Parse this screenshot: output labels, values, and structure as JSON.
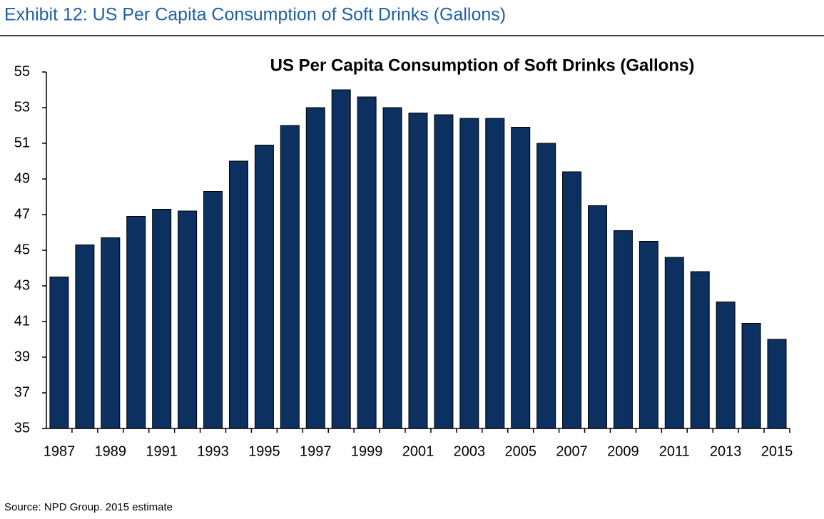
{
  "header": {
    "title": "Exhibit 12: US Per Capita Consumption of Soft Drinks (Gallons)"
  },
  "chart_data": {
    "type": "bar",
    "title": "US Per Capita Consumption of Soft Drinks (Gallons)",
    "categories": [
      "1987",
      null,
      "1989",
      null,
      "1991",
      null,
      "1993",
      null,
      "1995",
      null,
      "1997",
      null,
      "1999",
      null,
      "2001",
      null,
      "2003",
      null,
      "2005",
      null,
      "2007",
      null,
      "2009",
      null,
      "2011",
      null,
      "2013",
      null,
      "2015"
    ],
    "values": [
      43.5,
      45.3,
      45.7,
      46.9,
      47.3,
      47.2,
      48.3,
      50.0,
      50.9,
      52.0,
      53.0,
      54.0,
      53.6,
      53.0,
      52.7,
      52.6,
      52.4,
      52.4,
      51.9,
      51.0,
      49.4,
      47.5,
      46.1,
      45.5,
      44.6,
      43.8,
      42.1,
      40.9,
      40.0
    ],
    "color": "#0c305f",
    "ylim": [
      35,
      55
    ],
    "yticks": [
      35,
      37,
      39,
      41,
      43,
      45,
      47,
      49,
      51,
      53,
      55
    ],
    "grid": false
  },
  "footer": {
    "source": "Source: NPD Group. 2015 estimate"
  }
}
